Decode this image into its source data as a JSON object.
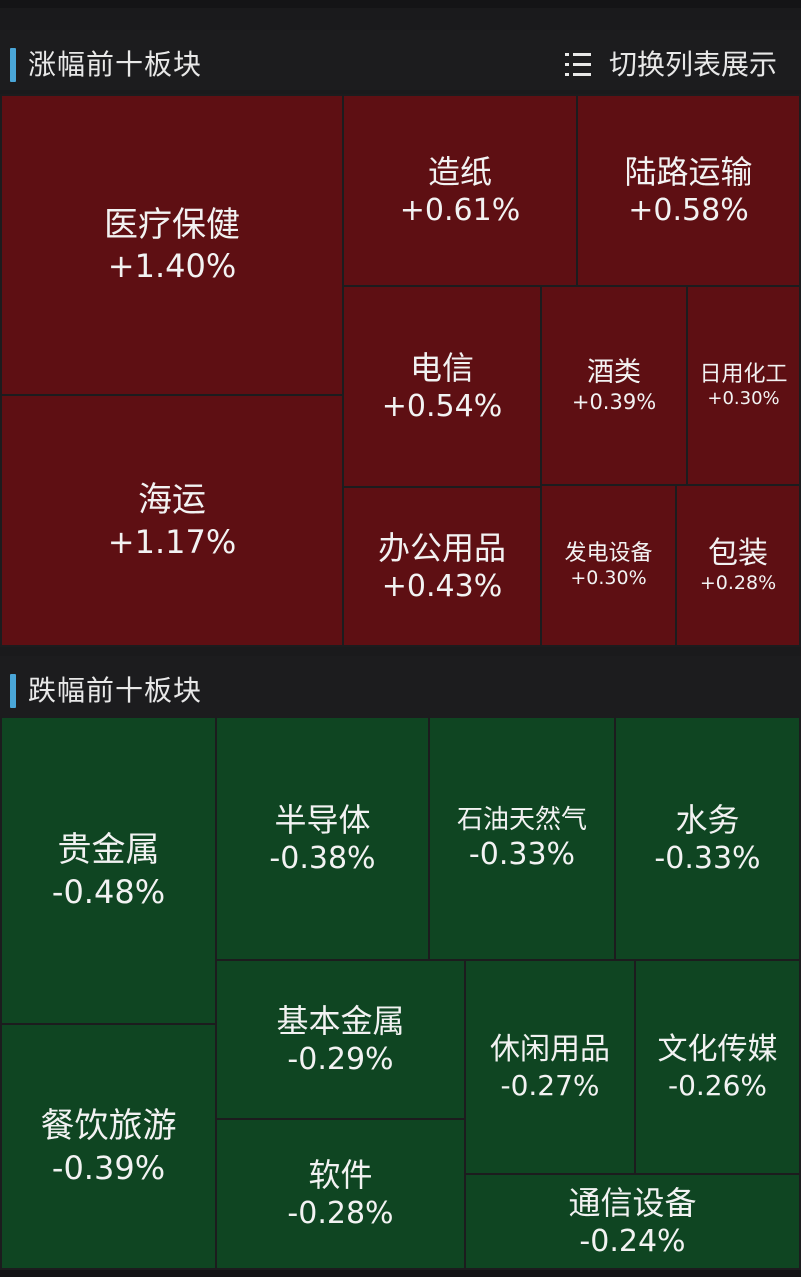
{
  "gainers": {
    "title": "涨幅前十板块",
    "switch_label": "切换列表展示",
    "tiles": [
      {
        "name": "医疗保健",
        "change": "+1.40%"
      },
      {
        "name": "海运",
        "change": "+1.17%"
      },
      {
        "name": "造纸",
        "change": "+0.61%"
      },
      {
        "name": "陆路运输",
        "change": "+0.58%"
      },
      {
        "name": "电信",
        "change": "+0.54%"
      },
      {
        "name": "酒类",
        "change": "+0.39%"
      },
      {
        "name": "日用化工",
        "change": "+0.30%"
      },
      {
        "name": "办公用品",
        "change": "+0.43%"
      },
      {
        "name": "发电设备",
        "change": "+0.30%"
      },
      {
        "name": "包装",
        "change": "+0.28%"
      }
    ]
  },
  "losers": {
    "title": "跌幅前十板块",
    "tiles": [
      {
        "name": "贵金属",
        "change": "-0.48%"
      },
      {
        "name": "半导体",
        "change": "-0.38%"
      },
      {
        "name": "石油天然气",
        "change": "-0.33%"
      },
      {
        "name": "水务",
        "change": "-0.33%"
      },
      {
        "name": "基本金属",
        "change": "-0.29%"
      },
      {
        "name": "休闲用品",
        "change": "-0.27%"
      },
      {
        "name": "文化传媒",
        "change": "-0.26%"
      },
      {
        "name": "餐饮旅游",
        "change": "-0.39%"
      },
      {
        "name": "软件",
        "change": "-0.28%"
      },
      {
        "name": "通信设备",
        "change": "-0.24%"
      }
    ]
  },
  "colors": {
    "gain_tile": "#5e0f13",
    "loss_tile": "#0f4522",
    "accent_bar": "#4aa6d8",
    "background": "#1c1c1e"
  },
  "icons": {
    "switch": "list-icon"
  }
}
